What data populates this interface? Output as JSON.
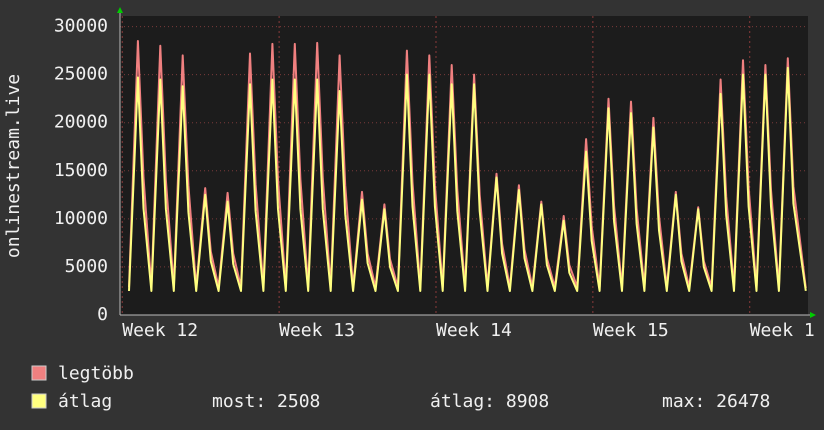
{
  "chart_data": {
    "type": "line",
    "y_label": "onlinestream.live",
    "xlim": [
      -0.1,
      30.6
    ],
    "ylim": [
      0,
      31100
    ],
    "xticks": [
      {
        "value": 0,
        "label": "Week 12"
      },
      {
        "value": 7,
        "label": "Week 13"
      },
      {
        "value": 14,
        "label": "Week 14"
      },
      {
        "value": 21,
        "label": "Week 15"
      },
      {
        "value": 28,
        "label": "Week 1"
      }
    ],
    "yticks": [
      0,
      5000,
      10000,
      15000,
      20000,
      25000,
      30000
    ],
    "grid": true,
    "x": [
      0.3,
      0.7,
      0.95,
      1.3,
      1.7,
      1.95,
      2.3,
      2.7,
      2.95,
      3.3,
      3.7,
      3.95,
      4.3,
      4.7,
      4.95,
      5.3,
      5.7,
      5.95,
      6.3,
      6.7,
      6.95,
      7.3,
      7.7,
      7.95,
      8.3,
      8.7,
      8.95,
      9.3,
      9.7,
      9.95,
      10.3,
      10.7,
      10.95,
      11.3,
      11.7,
      11.95,
      12.3,
      12.7,
      12.95,
      13.3,
      13.7,
      13.95,
      14.3,
      14.7,
      14.95,
      15.3,
      15.7,
      15.95,
      16.3,
      16.7,
      16.95,
      17.3,
      17.7,
      17.95,
      18.3,
      18.7,
      18.95,
      19.3,
      19.7,
      19.95,
      20.3,
      20.7,
      20.95,
      21.3,
      21.7,
      21.95,
      22.3,
      22.7,
      22.95,
      23.3,
      23.7,
      23.95,
      24.3,
      24.7,
      24.95,
      25.3,
      25.7,
      25.95,
      26.3,
      26.7,
      26.95,
      27.3,
      27.7,
      27.95,
      28.3,
      28.7,
      28.95,
      29.3,
      29.7,
      29.95,
      30.5
    ],
    "series": [
      {
        "name": "legtöbb",
        "color": "#f08080",
        "values": [
          2900,
          28500,
          14300,
          2900,
          28000,
          14000,
          2900,
          27000,
          13500,
          2900,
          13200,
          6600,
          2900,
          12700,
          6400,
          2900,
          27200,
          13600,
          2900,
          28200,
          14100,
          2900,
          28200,
          14100,
          2900,
          28300,
          14200,
          2900,
          27000,
          13500,
          2900,
          12800,
          6400,
          2900,
          11500,
          5800,
          2900,
          27500,
          13800,
          2900,
          27000,
          13500,
          2900,
          26000,
          13000,
          2900,
          25000,
          12500,
          2900,
          14700,
          7400,
          2900,
          13500,
          6800,
          2900,
          11800,
          5900,
          2900,
          10300,
          5200,
          2900,
          18300,
          9200,
          2900,
          22500,
          11300,
          2900,
          22200,
          11100,
          2900,
          20500,
          10300,
          2900,
          12800,
          6400,
          2900,
          11200,
          5600,
          2900,
          24500,
          12300,
          2900,
          26500,
          13300,
          2900,
          26000,
          13000,
          2900,
          26700,
          13400,
          2800
        ]
      },
      {
        "name": "átlag",
        "color": "#ffff80",
        "values": [
          2500,
          24700,
          11100,
          2500,
          24500,
          11000,
          2500,
          23800,
          10700,
          2500,
          12500,
          5600,
          2500,
          11800,
          5300,
          2500,
          24000,
          10800,
          2500,
          24500,
          11000,
          2500,
          24500,
          11000,
          2500,
          24500,
          11000,
          2500,
          23300,
          10500,
          2500,
          12000,
          5400,
          2500,
          11000,
          5000,
          2500,
          25000,
          11300,
          2500,
          25000,
          11300,
          2500,
          24000,
          10800,
          2500,
          24000,
          10800,
          2500,
          14300,
          6400,
          2500,
          13000,
          5900,
          2500,
          11500,
          5200,
          2500,
          9800,
          4400,
          2500,
          17000,
          7700,
          2500,
          21500,
          9700,
          2500,
          21000,
          9500,
          2500,
          19500,
          8800,
          2500,
          12500,
          5600,
          2500,
          11000,
          5000,
          2500,
          23000,
          10400,
          2500,
          25000,
          11300,
          2500,
          25000,
          11300,
          2500,
          25700,
          11600,
          2508
        ]
      }
    ],
    "stats": [
      "most: 2508",
      "átlag: 8908",
      "max: 26478"
    ]
  }
}
